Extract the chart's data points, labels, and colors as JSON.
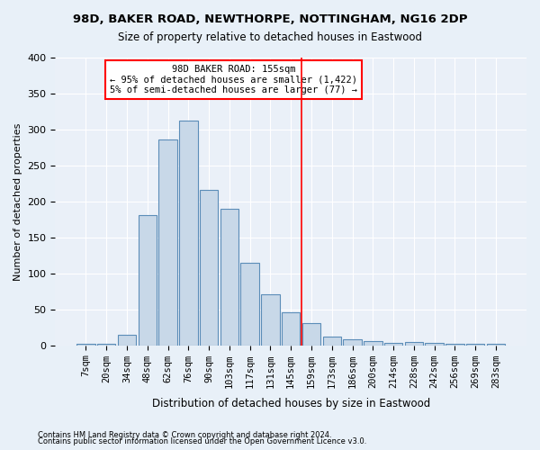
{
  "title1": "98D, BAKER ROAD, NEWTHORPE, NOTTINGHAM, NG16 2DP",
  "title2": "Size of property relative to detached houses in Eastwood",
  "xlabel": "Distribution of detached houses by size in Eastwood",
  "ylabel": "Number of detached properties",
  "bar_labels": [
    "7sqm",
    "20sqm",
    "34sqm",
    "48sqm",
    "62sqm",
    "76sqm",
    "90sqm",
    "103sqm",
    "117sqm",
    "131sqm",
    "145sqm",
    "159sqm",
    "173sqm",
    "186sqm",
    "200sqm",
    "214sqm",
    "228sqm",
    "242sqm",
    "256sqm",
    "269sqm",
    "283sqm"
  ],
  "bar_values": [
    2,
    2,
    15,
    181,
    286,
    313,
    216,
    190,
    115,
    71,
    46,
    31,
    12,
    8,
    6,
    3,
    5,
    3,
    2,
    2,
    2
  ],
  "bar_color": "#c8d8e8",
  "bar_edge_color": "#5b8db8",
  "vline_color": "red",
  "annotation_title": "98D BAKER ROAD: 155sqm",
  "annotation_line1": "← 95% of detached houses are smaller (1,422)",
  "annotation_line2": "5% of semi-detached houses are larger (77) →",
  "annotation_box_color": "white",
  "annotation_box_edge": "red",
  "ylim": [
    0,
    400
  ],
  "yticks": [
    0,
    50,
    100,
    150,
    200,
    250,
    300,
    350,
    400
  ],
  "footnote1": "Contains HM Land Registry data © Crown copyright and database right 2024.",
  "footnote2": "Contains public sector information licensed under the Open Government Licence v3.0.",
  "bg_color": "#e8f0f8",
  "plot_bg_color": "#eaf0f8"
}
